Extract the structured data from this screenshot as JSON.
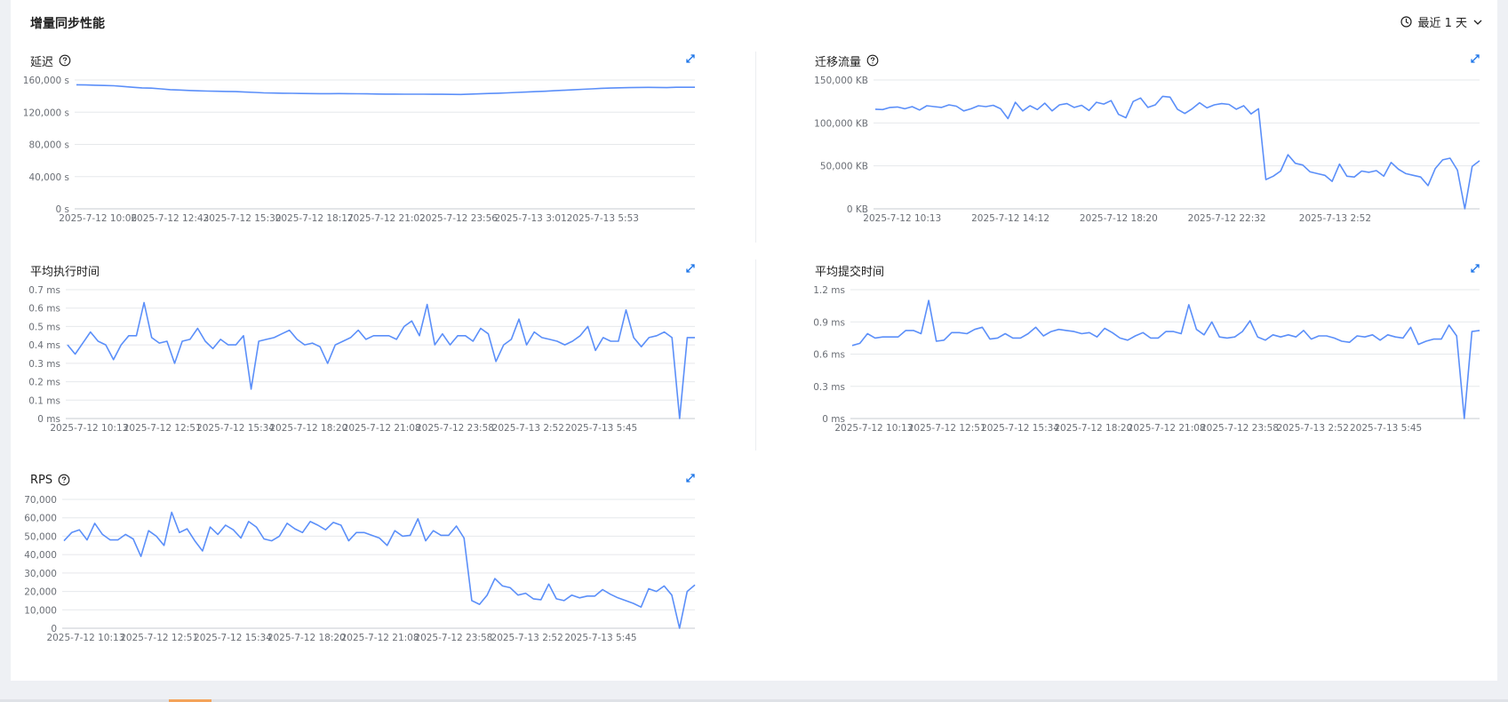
{
  "page": {
    "title": "增量同步性能",
    "time_range_label": "最近 1 天",
    "accent_color": "#5b8ff9"
  },
  "charts": [
    {
      "id": "latency",
      "title": "延迟",
      "has_help": true,
      "chart_data": {
        "type": "line",
        "title": "延迟",
        "unit": "s",
        "ylim": [
          0,
          160000
        ],
        "yticks": [
          "0 s",
          "40,000 s",
          "80,000 s",
          "120,000 s",
          "160,000 s"
        ],
        "ytick_values": [
          0,
          40000,
          80000,
          120000,
          160000
        ],
        "xticks": [
          "2025-7-12 10:06",
          "2025-7-12 12:43",
          "2025-7-12 15:30",
          "2025-7-12 18:17",
          "2025-7-12 21:02",
          "2025-7-12 23:56",
          "2025-7-13 3:01",
          "2025-7-13 5:53"
        ],
        "series": [
          {
            "color": "#5b8ff9",
            "values": [
              154000,
              153800,
              153500,
              153200,
              152800,
              152000,
              151000,
              150200,
              149800,
              149000,
              148000,
              147500,
              147000,
              146500,
              146200,
              146000,
              145800,
              145500,
              145000,
              144500,
              144000,
              143800,
              143600,
              143400,
              143200,
              143100,
              143000,
              143000,
              143100,
              143000,
              142900,
              142800,
              142600,
              142500,
              142400,
              142300,
              142300,
              142300,
              142200,
              142200,
              142100,
              142000,
              142400,
              142800,
              143200,
              143600,
              144000,
              144500,
              145000,
              145500,
              146000,
              146600,
              147200,
              147800,
              148400,
              149000,
              149600,
              150000,
              150300,
              150500,
              150700,
              150800,
              150700,
              150500,
              150900,
              151000,
              151000
            ]
          }
        ]
      }
    },
    {
      "id": "migration-traffic",
      "title": "迁移流量",
      "has_help": true,
      "chart_data": {
        "type": "line",
        "title": "迁移流量",
        "unit": "KB",
        "ylim": [
          0,
          150000
        ],
        "yticks": [
          "0 KB",
          "50,000 KB",
          "100,000 KB",
          "150,000 KB"
        ],
        "ytick_values": [
          0,
          50000,
          100000,
          150000
        ],
        "xticks": [
          "2025-7-12 10:13",
          "2025-7-12 14:12",
          "2025-7-12 18:20",
          "2025-7-12 22:32",
          "2025-7-13 2:52"
        ],
        "series": [
          {
            "color": "#5b8ff9",
            "values": [
              116000,
              115500,
              118000,
              118500,
              116500,
              119000,
              115000,
              120000,
              119000,
              118000,
              121000,
              119500,
              114000,
              116500,
              120000,
              119000,
              120500,
              116500,
              105000,
              124000,
              114000,
              120000,
              115500,
              123000,
              114000,
              121000,
              122500,
              118000,
              120500,
              114500,
              124000,
              122000,
              126000,
              110000,
              106000,
              125000,
              129000,
              118000,
              121000,
              131000,
              130000,
              116000,
              111000,
              116500,
              123500,
              117500,
              121000,
              122500,
              121500,
              116000,
              120000,
              110500,
              116500,
              34000,
              38000,
              44000,
              63000,
              53000,
              51000,
              43000,
              41000,
              39000,
              32000,
              52000,
              38000,
              37000,
              44000,
              42500,
              44500,
              38000,
              54000,
              46000,
              41000,
              39000,
              37000,
              27000,
              47000,
              57000,
              59000,
              45000,
              0,
              49500,
              56000
            ]
          }
        ]
      }
    },
    {
      "id": "avg-exec-time",
      "title": "平均执行时间",
      "has_help": false,
      "chart_data": {
        "type": "line",
        "title": "平均执行时间",
        "unit": "ms",
        "ylim": [
          0,
          0.7
        ],
        "yticks": [
          "0 ms",
          "0.1 ms",
          "0.2 ms",
          "0.3 ms",
          "0.4 ms",
          "0.5 ms",
          "0.6 ms",
          "0.7 ms"
        ],
        "ytick_values": [
          0,
          0.1,
          0.2,
          0.3,
          0.4,
          0.5,
          0.6,
          0.7
        ],
        "xticks": [
          "2025-7-12 10:13",
          "2025-7-12 12:51",
          "2025-7-12 15:34",
          "2025-7-12 18:20",
          "2025-7-12 21:08",
          "2025-7-12 23:58",
          "2025-7-13 2:52",
          "2025-7-13 5:45"
        ],
        "series": [
          {
            "color": "#5b8ff9",
            "values": [
              0.4,
              0.35,
              0.41,
              0.47,
              0.42,
              0.4,
              0.32,
              0.4,
              0.45,
              0.45,
              0.63,
              0.44,
              0.41,
              0.42,
              0.3,
              0.42,
              0.43,
              0.49,
              0.42,
              0.38,
              0.43,
              0.4,
              0.4,
              0.45,
              0.16,
              0.42,
              0.43,
              0.44,
              0.46,
              0.48,
              0.43,
              0.4,
              0.41,
              0.39,
              0.3,
              0.4,
              0.42,
              0.44,
              0.48,
              0.43,
              0.45,
              0.45,
              0.45,
              0.43,
              0.5,
              0.53,
              0.45,
              0.62,
              0.4,
              0.46,
              0.4,
              0.45,
              0.45,
              0.42,
              0.49,
              0.46,
              0.31,
              0.4,
              0.43,
              0.54,
              0.4,
              0.47,
              0.44,
              0.43,
              0.42,
              0.4,
              0.42,
              0.45,
              0.5,
              0.37,
              0.44,
              0.42,
              0.42,
              0.59,
              0.44,
              0.39,
              0.44,
              0.45,
              0.47,
              0.44,
              0.0,
              0.44,
              0.44
            ]
          }
        ]
      }
    },
    {
      "id": "avg-commit-time",
      "title": "平均提交时间",
      "has_help": false,
      "chart_data": {
        "type": "line",
        "title": "平均提交时间",
        "unit": "ms",
        "ylim": [
          0,
          1.2
        ],
        "yticks": [
          "0 ms",
          "0.3 ms",
          "0.6 ms",
          "0.9 ms",
          "1.2 ms"
        ],
        "ytick_values": [
          0,
          0.3,
          0.6,
          0.9,
          1.2
        ],
        "xticks": [
          "2025-7-12 10:13",
          "2025-7-12 12:51",
          "2025-7-12 15:34",
          "2025-7-12 18:20",
          "2025-7-12 21:08",
          "2025-7-12 23:58",
          "2025-7-13 2:52",
          "2025-7-13 5:45"
        ],
        "series": [
          {
            "color": "#5b8ff9",
            "values": [
              0.68,
              0.7,
              0.79,
              0.75,
              0.76,
              0.76,
              0.76,
              0.82,
              0.82,
              0.79,
              1.1,
              0.72,
              0.73,
              0.8,
              0.8,
              0.79,
              0.83,
              0.85,
              0.74,
              0.75,
              0.79,
              0.75,
              0.75,
              0.79,
              0.85,
              0.77,
              0.81,
              0.83,
              0.82,
              0.81,
              0.79,
              0.8,
              0.76,
              0.84,
              0.8,
              0.75,
              0.73,
              0.77,
              0.8,
              0.75,
              0.75,
              0.81,
              0.81,
              0.79,
              1.06,
              0.83,
              0.78,
              0.9,
              0.76,
              0.75,
              0.76,
              0.81,
              0.91,
              0.76,
              0.73,
              0.78,
              0.76,
              0.78,
              0.76,
              0.82,
              0.74,
              0.77,
              0.77,
              0.75,
              0.72,
              0.71,
              0.77,
              0.76,
              0.78,
              0.73,
              0.78,
              0.76,
              0.75,
              0.85,
              0.69,
              0.72,
              0.74,
              0.74,
              0.87,
              0.77,
              0.0,
              0.81,
              0.82
            ]
          }
        ]
      }
    },
    {
      "id": "rps",
      "title": "RPS",
      "has_help": true,
      "chart_data": {
        "type": "line",
        "title": "RPS",
        "unit": "",
        "ylim": [
          0,
          70000
        ],
        "yticks": [
          "0",
          "10,000",
          "20,000",
          "30,000",
          "40,000",
          "50,000",
          "60,000",
          "70,000"
        ],
        "ytick_values": [
          0,
          10000,
          20000,
          30000,
          40000,
          50000,
          60000,
          70000
        ],
        "xticks": [
          "2025-7-12 10:13",
          "2025-7-12 12:51",
          "2025-7-12 15:34",
          "2025-7-12 18:20",
          "2025-7-12 21:08",
          "2025-7-12 23:58",
          "2025-7-13 2:52",
          "2025-7-13 5:45"
        ],
        "series": [
          {
            "color": "#5b8ff9",
            "values": [
              47500,
              52000,
              53500,
              48000,
              57000,
              51000,
              48000,
              48000,
              51000,
              48500,
              39000,
              53000,
              50000,
              45000,
              63000,
              52000,
              54000,
              47500,
              42000,
              55000,
              51000,
              56000,
              53500,
              49000,
              58000,
              55000,
              48500,
              47500,
              50000,
              57000,
              54000,
              52000,
              58000,
              56000,
              53500,
              57500,
              56000,
              47500,
              52000,
              52000,
              50500,
              49000,
              45000,
              53000,
              50000,
              50500,
              59500,
              47500,
              53000,
              50500,
              50500,
              55500,
              49000,
              15000,
              13000,
              18000,
              27000,
              23000,
              22000,
              18000,
              19000,
              16000,
              15500,
              24000,
              16000,
              15000,
              18000,
              16500,
              17500,
              17500,
              21000,
              18500,
              16500,
              15000,
              13500,
              11500,
              21500,
              20000,
              23000,
              18000,
              0,
              20000,
              23500
            ]
          }
        ]
      }
    }
  ]
}
